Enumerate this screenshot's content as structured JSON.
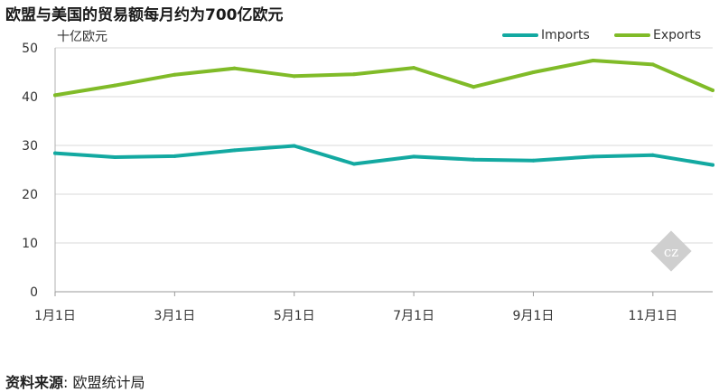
{
  "chart_data": {
    "type": "line",
    "title": "欧盟与美国的贸易额每月约为700亿欧元",
    "ylabel": "十亿欧元",
    "xlabel": "",
    "ylim": [
      0,
      50
    ],
    "yticks": [
      0,
      10,
      20,
      30,
      40,
      50
    ],
    "x": [
      "1月1日",
      "2月1日",
      "3月1日",
      "4月1日",
      "5月1日",
      "6月1日",
      "7月1日",
      "8月1日",
      "9月1日",
      "10月1日",
      "11月1日",
      "12月1日"
    ],
    "xtick_labels": [
      "1月1日",
      "3月1日",
      "5月1日",
      "7月1日",
      "9月1日",
      "11月1日"
    ],
    "grid": true,
    "legend_position": "top-right",
    "series": [
      {
        "name": "Imports",
        "color": "#13a9a1",
        "values": [
          28.4,
          27.6,
          27.8,
          29.0,
          29.9,
          26.2,
          27.7,
          27.1,
          26.9,
          27.7,
          28.0,
          26.0
        ]
      },
      {
        "name": "Exports",
        "color": "#80bb28",
        "values": [
          40.3,
          42.3,
          44.5,
          45.8,
          44.2,
          44.6,
          45.9,
          42.0,
          45.0,
          47.4,
          46.6,
          41.3
        ]
      }
    ]
  },
  "source": {
    "label": "资料来源",
    "separator": ":",
    "text": "欧盟统计局"
  }
}
